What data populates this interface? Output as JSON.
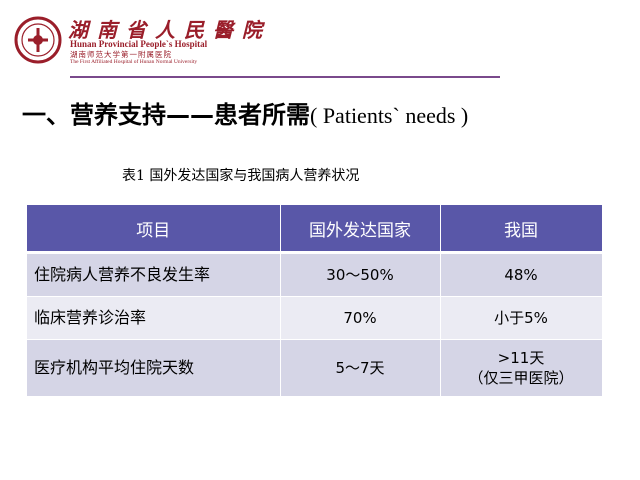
{
  "header": {
    "logo_icon": "hospital-seal-icon",
    "hospital_name_cn": "湖南省人民醫院",
    "hospital_name_en": "Hunan Provincial People`s Hospital",
    "hospital_sub_cn": "湖南师范大学第一附属医院",
    "hospital_sub_en": "The First Affiliated Hospital of Hunan Normal University",
    "brand_color": "#9a1e2a",
    "rule_color": "#7a4a8c"
  },
  "slide": {
    "title_cn": "一、营养支持——患者所需",
    "title_en": "( Patients` needs )",
    "caption": "表1  国外发达国家与我国病人营养状况"
  },
  "table": {
    "header_color": "#5957a8",
    "columns": [
      "项目",
      "国外发达国家",
      "我国"
    ],
    "rows": [
      {
        "item": "住院病人营养不良发生率",
        "foreign": "30～50%",
        "china_line1": "48%",
        "china_line2": ""
      },
      {
        "item": "临床营养诊治率",
        "foreign": "70%",
        "china_line1": "小于5%",
        "china_line2": ""
      },
      {
        "item": "医疗机构平均住院天数",
        "foreign": "5～7天",
        "china_line1": ">11天",
        "china_line2": "（仅三甲医院）"
      }
    ]
  }
}
